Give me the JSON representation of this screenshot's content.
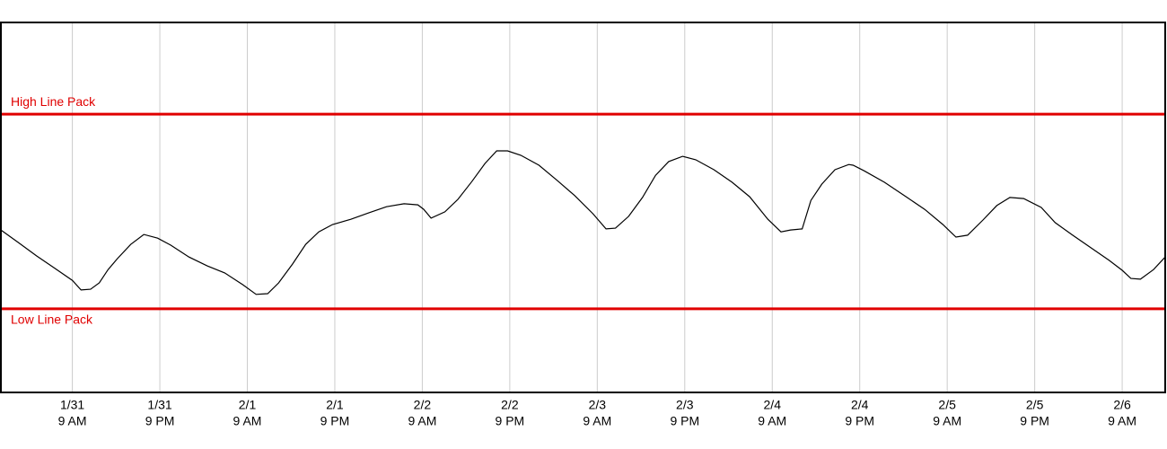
{
  "chart_data": {
    "type": "line",
    "x": [
      -9.8,
      -7.4,
      -4.9,
      -2.5,
      0,
      1.2,
      2.5,
      3.7,
      4.9,
      6.2,
      8.0,
      9.8,
      11.7,
      13.5,
      16.0,
      18.5,
      20.9,
      23.4,
      25.2,
      26.8,
      28.3,
      30.2,
      32.0,
      33.8,
      35.7,
      38.2,
      40.6,
      43.1,
      45.5,
      47.4,
      48.2,
      49.2,
      51.1,
      52.9,
      54.8,
      56.6,
      58.2,
      59.7,
      61.5,
      64.0,
      66.5,
      68.9,
      71.4,
      73.2,
      74.5,
      76.3,
      78.2,
      80.0,
      81.8,
      83.7,
      85.5,
      88.0,
      90.5,
      92.9,
      95.4,
      97.2,
      98.5,
      100.1,
      101.3,
      102.8,
      104.6,
      106.5,
      107.1,
      108.6,
      111.4,
      114.5,
      116.9,
      119.4,
      121.2,
      122.8,
      124.9,
      126.8,
      128.6,
      130.5,
      132.9,
      134.8,
      137.2,
      139.7,
      142.2,
      144.0,
      145.2,
      146.5,
      148.3,
      149.9
    ],
    "series": [
      {
        "color": "#000000",
        "values": [
          43.9,
          40.5,
          36.9,
          33.7,
          30.3,
          27.7,
          27.9,
          29.6,
          33.2,
          36.2,
          40.0,
          42.7,
          41.7,
          39.8,
          36.6,
          34.2,
          32.3,
          29.1,
          26.5,
          26.7,
          29.6,
          34.7,
          40.0,
          43.4,
          45.4,
          46.8,
          48.5,
          50.2,
          51.0,
          50.7,
          49.5,
          47.1,
          48.8,
          52.2,
          57.0,
          61.9,
          65.3,
          65.3,
          64.1,
          61.4,
          57.3,
          53.2,
          48.3,
          44.2,
          44.4,
          47.6,
          52.7,
          58.7,
          62.4,
          63.8,
          62.9,
          60.2,
          56.8,
          52.9,
          46.8,
          43.4,
          43.9,
          44.2,
          51.9,
          56.3,
          60.2,
          61.6,
          61.4,
          59.9,
          56.8,
          52.7,
          49.5,
          45.4,
          42.0,
          42.5,
          46.6,
          50.5,
          52.7,
          52.4,
          50.0,
          45.9,
          42.5,
          39.1,
          35.7,
          33.0,
          30.8,
          30.6,
          33.2,
          36.6
        ]
      }
    ],
    "xlim": [
      -9.8,
      149.9
    ],
    "xticks": [
      {
        "value": 0,
        "date": "1/31",
        "time": "9 AM"
      },
      {
        "value": 12,
        "date": "1/31",
        "time": "9 PM"
      },
      {
        "value": 24,
        "date": "2/1",
        "time": "9 AM"
      },
      {
        "value": 36,
        "date": "2/1",
        "time": "9 PM"
      },
      {
        "value": 48,
        "date": "2/2",
        "time": "9 AM"
      },
      {
        "value": 60,
        "date": "2/2",
        "time": "9 PM"
      },
      {
        "value": 72,
        "date": "2/3",
        "time": "9 AM"
      },
      {
        "value": 84,
        "date": "2/3",
        "time": "9 PM"
      },
      {
        "value": 96,
        "date": "2/4",
        "time": "9 AM"
      },
      {
        "value": 108,
        "date": "2/4",
        "time": "9 PM"
      },
      {
        "value": 120,
        "date": "2/5",
        "time": "9 AM"
      },
      {
        "value": 132,
        "date": "2/5",
        "time": "9 PM"
      },
      {
        "value": 144,
        "date": "2/6",
        "time": "9 AM"
      }
    ],
    "ylim": [
      0,
      100
    ],
    "grid": true,
    "reference_lines": [
      {
        "value": 75.2,
        "label": "High Line Pack",
        "color": "#e00000",
        "label_side": "above"
      },
      {
        "value": 22.6,
        "label": "Low Line Pack",
        "color": "#e00000",
        "label_side": "below"
      }
    ]
  }
}
